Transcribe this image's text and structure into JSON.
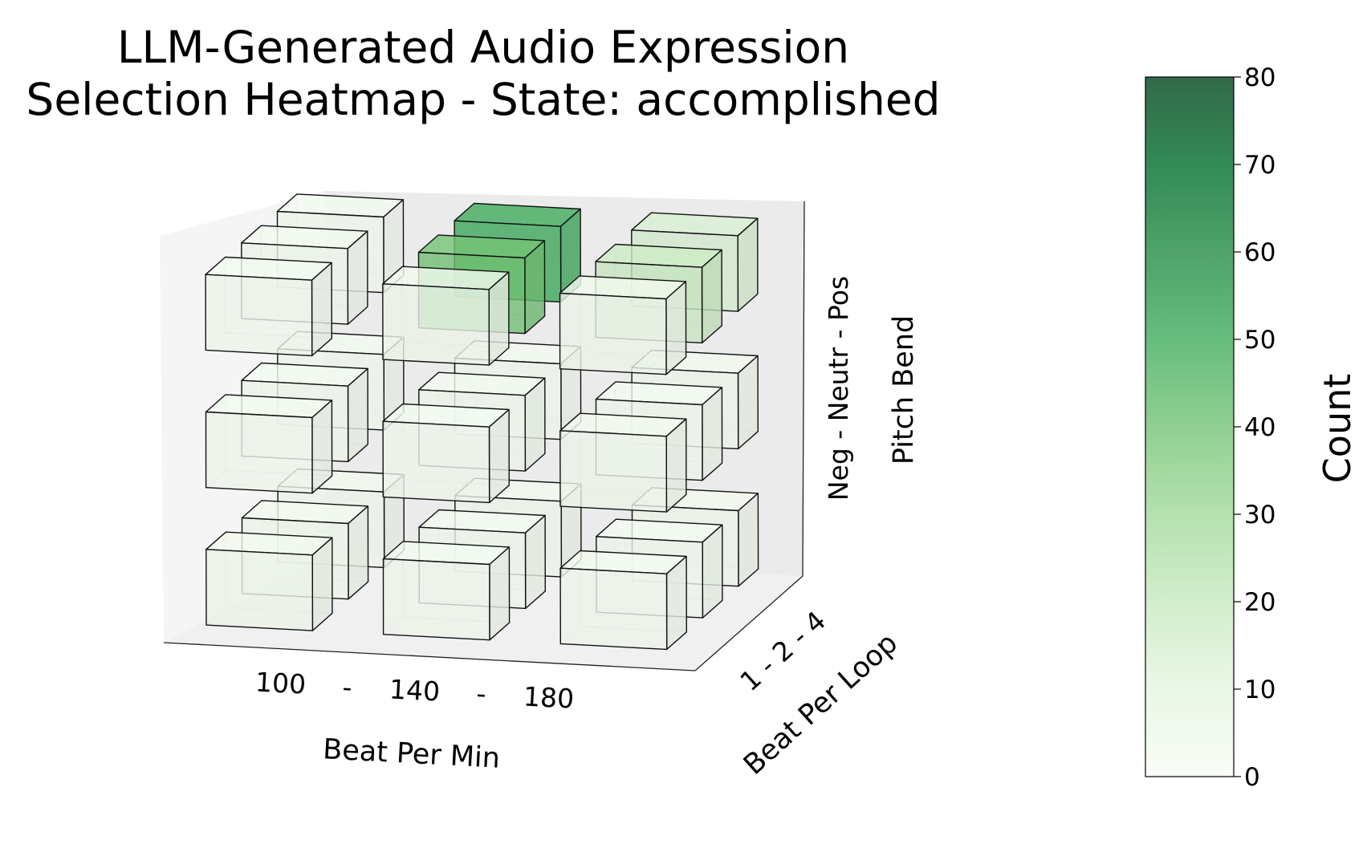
{
  "chart_data": {
    "type": "heatmap",
    "style": "3d-voxel",
    "title_lines": [
      "LLM-Generated Audio Expression",
      "Selection Heatmap - State: accomplished"
    ],
    "axes": {
      "x": {
        "label": "Beat Per Min",
        "tick_labels": [
          "100",
          "-",
          "140",
          "-",
          "180"
        ],
        "categories": [
          "100",
          "140",
          "180"
        ]
      },
      "y": {
        "label": "Beat Per Loop",
        "tick_labels": [
          "1 - 2 - 4"
        ],
        "categories": [
          "1",
          "2",
          "4"
        ]
      },
      "z": {
        "label": "Pitch Bend",
        "tick_labels": [
          "Neg - Neutr - Pos"
        ],
        "categories": [
          "Neg",
          "Neutr",
          "Pos"
        ]
      }
    },
    "colorbar": {
      "label": "Count",
      "range": [
        0,
        80
      ],
      "ticks": [
        "0",
        "10",
        "20",
        "30",
        "40",
        "50",
        "60",
        "70",
        "80"
      ],
      "colormap": "Greens",
      "color_low": "#f7fcf5",
      "color_high": "#00441b",
      "alpha": 0.8
    },
    "cells_note": "values [bpm_index][loop_index][pitch_index]; bpm 100/140/180, loop 1/2/4, pitch Neg/Neutr/Pos",
    "values": [
      [
        [
          3,
          2,
          2
        ],
        [
          3,
          2,
          3
        ],
        [
          3,
          2,
          2
        ]
      ],
      [
        [
          2,
          2,
          3
        ],
        [
          2,
          3,
          40
        ],
        [
          3,
          2,
          50
        ]
      ],
      [
        [
          2,
          3,
          3
        ],
        [
          2,
          2,
          18
        ],
        [
          3,
          3,
          14
        ]
      ]
    ],
    "grid": true
  }
}
